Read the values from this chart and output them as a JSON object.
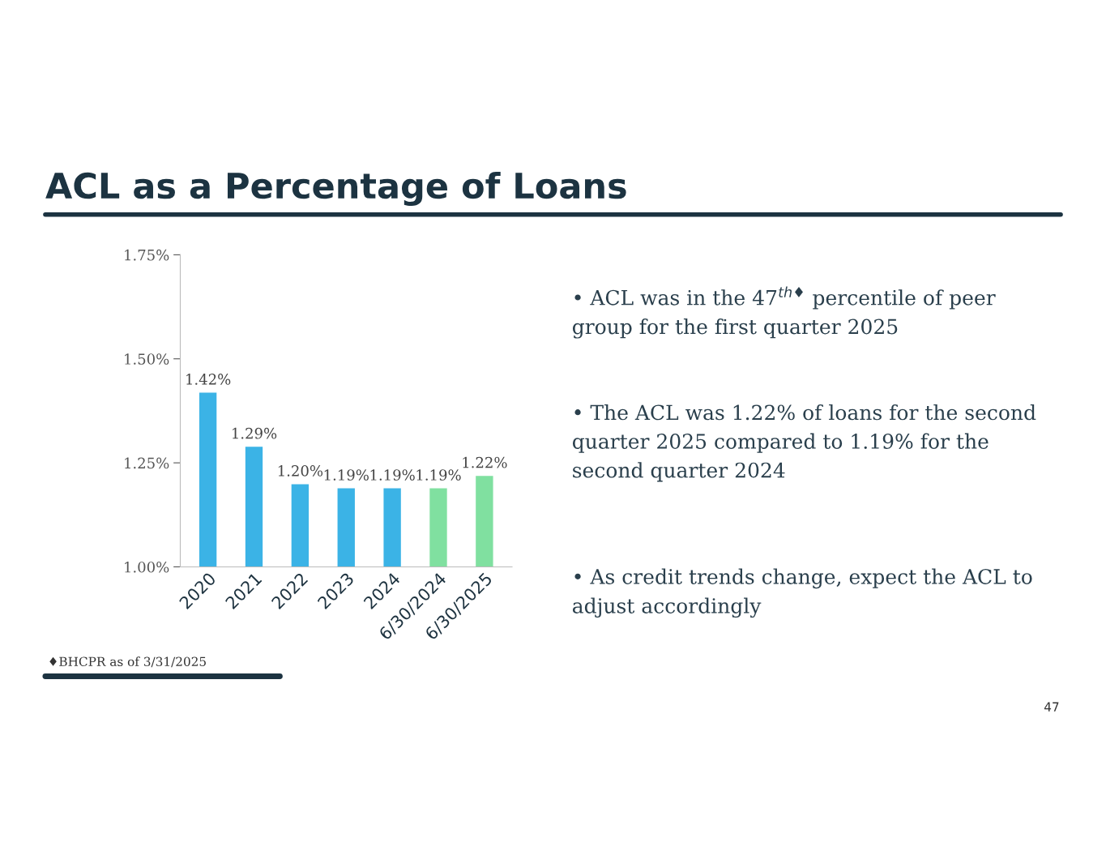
{
  "chart_data": {
    "type": "bar",
    "title": "ACL as a Percentage of Loans",
    "categories": [
      "2020",
      "2021",
      "2022",
      "2023",
      "2024",
      "6/30/2024",
      "6/30/2025"
    ],
    "values": [
      1.42,
      1.29,
      1.2,
      1.19,
      1.19,
      1.19,
      1.22
    ],
    "value_labels": [
      "1.42%",
      "1.29%",
      "1.20%",
      "1.19%",
      "1.19%",
      "1.19%",
      "1.22%"
    ],
    "colors": [
      "#3bb3e6",
      "#3bb3e6",
      "#3bb3e6",
      "#3bb3e6",
      "#3bb3e6",
      "#80e0a0",
      "#80e0a0"
    ],
    "ylim": [
      1.0,
      1.75
    ],
    "yticks": [
      {
        "value": 1.0,
        "label": "1.00%"
      },
      {
        "value": 1.25,
        "label": "1.25%"
      },
      {
        "value": 1.5,
        "label": "1.50%"
      },
      {
        "value": 1.75,
        "label": "1.75%"
      }
    ],
    "grid": false,
    "annotations": [
      "• ACL was in the 47$^{th♦}$ percentile of peer group for the first quarter 2025",
      "• The ACL was 1.22% of loans for the second quarter 2025 compared to 1.19% for the second quarter 2024",
      "• As credit trends change, expect the ACL to adjust accordingly",
      "♦BHCPR as of 3/31/2025",
      "47"
    ]
  }
}
